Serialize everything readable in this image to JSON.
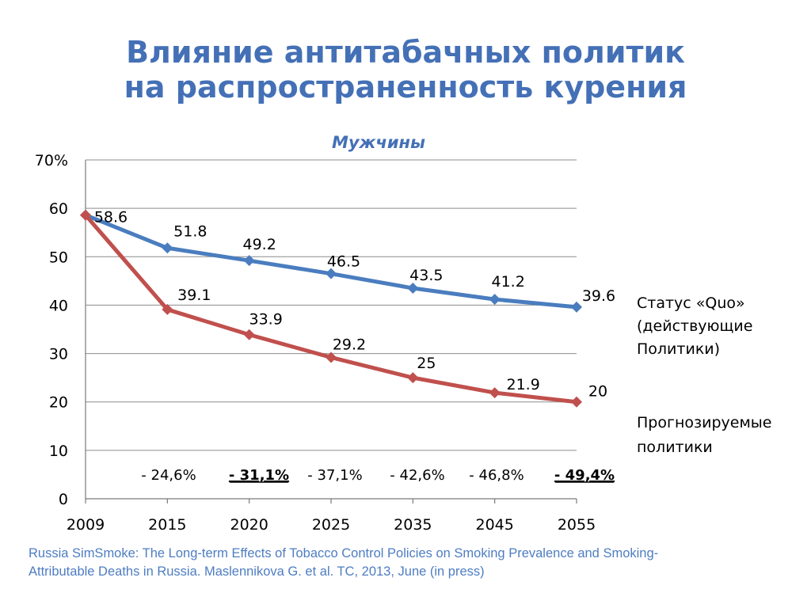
{
  "slide": {
    "title_line1": "Влияние антитабачных политик",
    "title_line2": "на распространенность курения",
    "source_line1": "Russia SimSmoke:  The Long-term Effects of Tobacco Control Policies on Smoking Prevalence and Smoking-",
    "source_line2": "Attributable Deaths in Russia.  Maslennikova  G. et al. TC, 2013, June (in press)"
  },
  "colors": {
    "title": "#4470b6",
    "status_quo": "#4a7dbf",
    "projected": "#c0504d",
    "grid": "#8c8c8c",
    "source": "#4e7dc2"
  },
  "chart_data": {
    "type": "line",
    "title": "Мужчины",
    "categories": [
      "2009",
      "2015",
      "2020",
      "2025",
      "2035",
      "2045",
      "2055"
    ],
    "y_ticks": [
      "0",
      "10",
      "20",
      "30",
      "40",
      "50",
      "60",
      "70%"
    ],
    "ylim": [
      0,
      70
    ],
    "grid": true,
    "legend_position": "right",
    "series": [
      {
        "name": "Статус «Quo» (действующие Политики)",
        "name_lines": [
          "Статус «Quo»",
          "(действующие",
          "Политики)"
        ],
        "color": "#4a7dbf",
        "values": [
          58.6,
          51.8,
          49.2,
          46.5,
          43.5,
          41.2,
          39.6
        ],
        "labels": [
          "58.6",
          "51.8",
          "49.2",
          "46.5",
          "43.5",
          "41.2",
          "39.6"
        ]
      },
      {
        "name": "Прогнозируемые политики",
        "name_lines": [
          "Прогнозируемые",
          "политики"
        ],
        "color": "#c0504d",
        "values": [
          58.6,
          39.1,
          33.9,
          29.2,
          25,
          21.9,
          20
        ],
        "labels": [
          "",
          "39.1",
          "33.9",
          "29.2",
          "25",
          "21.9",
          "20"
        ]
      }
    ],
    "annotations": [
      {
        "text": "- 24,6%",
        "bold": false
      },
      {
        "text": "- 31,1%",
        "bold": true
      },
      {
        "text": "- 37,1%",
        "bold": false
      },
      {
        "text": "- 42,6%",
        "bold": false
      },
      {
        "text": "- 46,8%",
        "bold": false
      },
      {
        "text": "- 49,4%",
        "bold": true
      }
    ]
  }
}
